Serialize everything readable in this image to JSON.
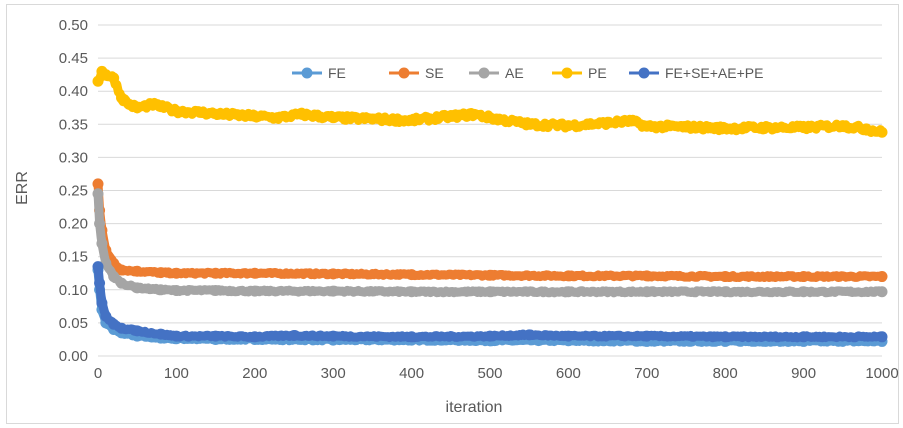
{
  "chart_data": {
    "type": "line",
    "xlabel": "iteration",
    "ylabel": "ERR",
    "xlim": [
      0,
      1000
    ],
    "ylim": [
      0,
      0.5
    ],
    "x_ticks": [
      "0",
      "100",
      "200",
      "300",
      "400",
      "500",
      "600",
      "700",
      "800",
      "900",
      "1000"
    ],
    "y_ticks": [
      "0.00",
      "0.05",
      "0.10",
      "0.15",
      "0.20",
      "0.25",
      "0.30",
      "0.35",
      "0.40",
      "0.45",
      "0.50"
    ],
    "grid": "horizontal",
    "legend_position": "top",
    "series": [
      {
        "name": "FE",
        "color": "#5B9BD5",
        "x": [
          0,
          2,
          5,
          10,
          20,
          30,
          50,
          80,
          100,
          150,
          200,
          300,
          400,
          500,
          600,
          700,
          800,
          900,
          1000
        ],
        "y": [
          0.13,
          0.1,
          0.07,
          0.05,
          0.04,
          0.035,
          0.03,
          0.027,
          0.026,
          0.025,
          0.025,
          0.024,
          0.024,
          0.023,
          0.023,
          0.022,
          0.022,
          0.022,
          0.022
        ]
      },
      {
        "name": "SE",
        "color": "#ED7D31",
        "x": [
          0,
          2,
          5,
          10,
          20,
          30,
          50,
          80,
          100,
          150,
          200,
          300,
          400,
          500,
          600,
          700,
          800,
          900,
          1000
        ],
        "y": [
          0.26,
          0.22,
          0.19,
          0.16,
          0.14,
          0.13,
          0.128,
          0.126,
          0.125,
          0.125,
          0.125,
          0.124,
          0.123,
          0.122,
          0.121,
          0.121,
          0.12,
          0.12,
          0.12
        ]
      },
      {
        "name": "AE",
        "color": "#A5A5A5",
        "x": [
          0,
          2,
          5,
          10,
          20,
          30,
          50,
          80,
          100,
          150,
          200,
          300,
          400,
          500,
          600,
          700,
          800,
          900,
          1000
        ],
        "y": [
          0.245,
          0.2,
          0.17,
          0.14,
          0.12,
          0.11,
          0.103,
          0.1,
          0.099,
          0.099,
          0.098,
          0.098,
          0.097,
          0.097,
          0.097,
          0.097,
          0.097,
          0.097,
          0.097
        ]
      },
      {
        "name": "PE",
        "color": "#FFC000",
        "x": [
          0,
          5,
          10,
          20,
          30,
          40,
          50,
          70,
          100,
          130,
          160,
          200,
          230,
          260,
          300,
          350,
          400,
          450,
          480,
          500,
          550,
          600,
          650,
          680,
          700,
          750,
          800,
          850,
          900,
          950,
          980,
          1000
        ],
        "y": [
          0.415,
          0.43,
          0.425,
          0.42,
          0.39,
          0.38,
          0.375,
          0.38,
          0.37,
          0.368,
          0.365,
          0.362,
          0.36,
          0.365,
          0.36,
          0.358,
          0.356,
          0.362,
          0.365,
          0.36,
          0.35,
          0.348,
          0.352,
          0.355,
          0.347,
          0.346,
          0.344,
          0.345,
          0.345,
          0.348,
          0.343,
          0.338
        ]
      },
      {
        "name": "FE+SE+AE+PE",
        "color": "#4472C4",
        "x": [
          0,
          2,
          5,
          10,
          20,
          30,
          50,
          80,
          100,
          150,
          200,
          250,
          300,
          400,
          500,
          550,
          600,
          700,
          800,
          900,
          1000
        ],
        "y": [
          0.135,
          0.11,
          0.08,
          0.06,
          0.048,
          0.042,
          0.038,
          0.033,
          0.03,
          0.03,
          0.029,
          0.031,
          0.03,
          0.029,
          0.03,
          0.032,
          0.03,
          0.03,
          0.029,
          0.029,
          0.029
        ]
      }
    ]
  }
}
